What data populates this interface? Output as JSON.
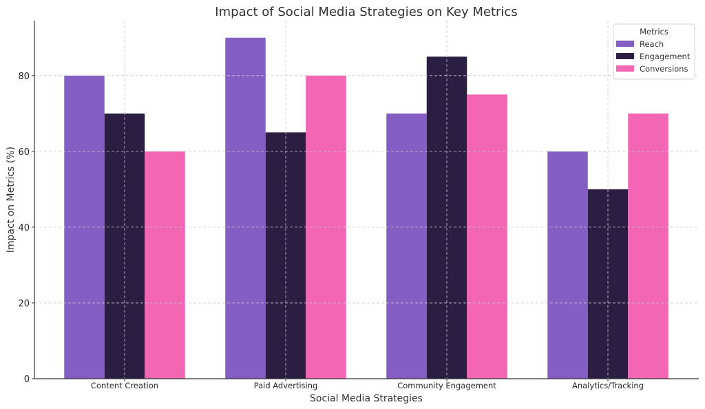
{
  "chart_data": {
    "type": "bar",
    "title": "Impact of Social Media Strategies on Key Metrics",
    "xlabel": "Social Media Strategies",
    "ylabel": "Impact on Metrics (%)",
    "categories": [
      "Content Creation",
      "Paid Advertising",
      "Community Engagement",
      "Analytics/Tracking"
    ],
    "series": [
      {
        "name": "Reach",
        "color": "#845EC2",
        "values": [
          80,
          90,
          70,
          60
        ]
      },
      {
        "name": "Engagement",
        "color": "#2C1E43",
        "values": [
          70,
          65,
          85,
          50
        ]
      },
      {
        "name": "Conversions",
        "color": "#F266B3",
        "values": [
          60,
          80,
          75,
          70
        ]
      }
    ],
    "ylim": [
      0,
      94.5
    ],
    "yticks": [
      0,
      20,
      40,
      60,
      80
    ],
    "ytick_labels": [
      "0",
      "20",
      "40",
      "60",
      "80"
    ],
    "grid": true,
    "legend": {
      "title": "Metrics",
      "placement": "top-right"
    }
  }
}
